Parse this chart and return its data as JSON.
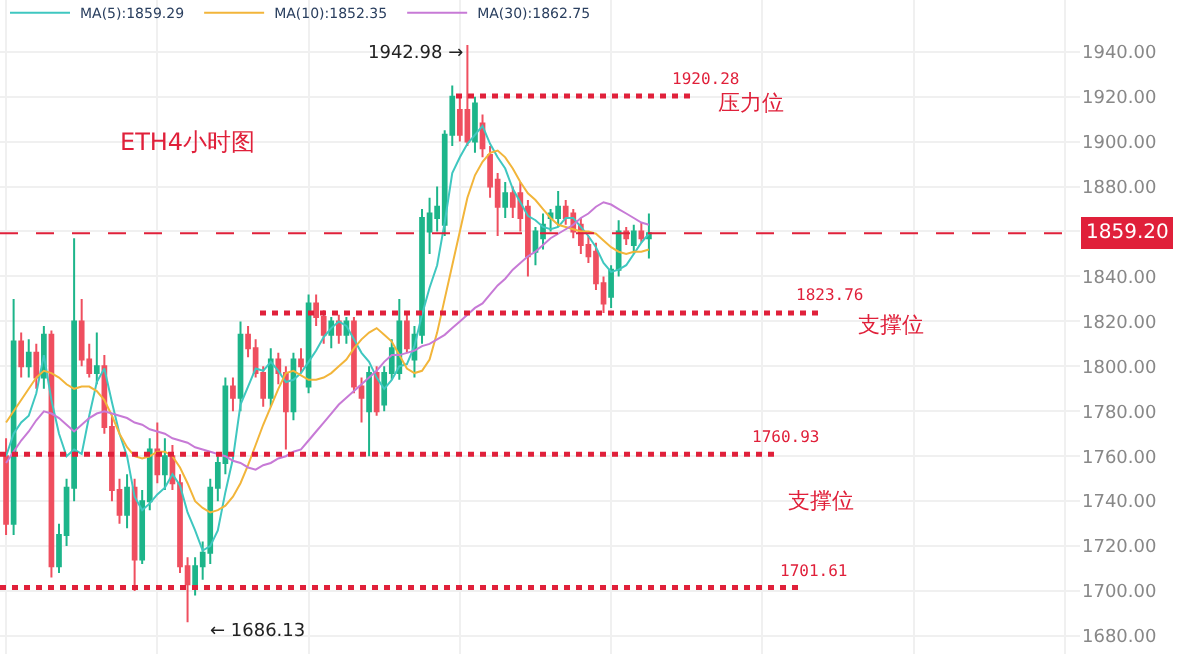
{
  "chart_data": {
    "type": "candlestick",
    "title": "ETH4小时图",
    "categories": [
      null,
      null,
      null,
      null,
      null,
      null,
      null,
      null,
      null,
      null,
      null,
      null,
      null,
      null,
      null,
      null,
      null,
      null,
      null,
      null,
      null,
      null,
      null,
      null,
      null,
      null,
      null,
      null,
      null,
      null,
      null,
      null,
      null,
      null,
      null,
      null,
      null,
      null,
      null,
      null,
      null,
      null,
      null,
      null,
      null,
      null,
      null,
      null,
      null,
      null,
      null,
      null,
      null,
      null,
      null,
      null,
      null,
      null,
      null,
      null,
      null,
      null,
      null,
      null,
      null,
      null,
      null,
      null,
      null,
      null,
      null,
      null,
      null,
      null,
      null,
      null,
      null,
      null,
      null,
      null,
      null,
      null,
      null,
      null,
      null,
      null,
      null,
      null,
      null,
      null,
      null,
      null,
      null,
      null,
      null,
      null,
      null,
      null,
      null,
      null,
      null,
      null,
      null,
      null,
      null,
      null,
      null,
      null,
      null,
      null,
      null,
      null,
      null,
      null,
      null,
      null,
      null,
      null,
      null,
      null,
      null,
      null,
      null,
      null,
      null,
      null,
      null,
      null,
      null,
      null,
      null,
      null,
      null,
      null,
      null,
      null,
      null,
      null,
      null,
      null,
      null,
      null,
      null
    ],
    "ohlc": [
      [
        1760,
        1768,
        1725,
        1730
      ],
      [
        1730,
        1830,
        1725,
        1811
      ],
      [
        1811,
        1815,
        1795,
        1800
      ],
      [
        1800,
        1812,
        1795,
        1806
      ],
      [
        1806,
        1810,
        1790,
        1795
      ],
      [
        1795,
        1818,
        1790,
        1814
      ],
      [
        1814,
        1816,
        1706,
        1711
      ],
      [
        1711,
        1730,
        1708,
        1725
      ],
      [
        1725,
        1750,
        1720,
        1746
      ],
      [
        1746,
        1857,
        1740,
        1820
      ],
      [
        1820,
        1830,
        1800,
        1803
      ],
      [
        1803,
        1810,
        1795,
        1797
      ],
      [
        1797,
        1815,
        1792,
        1800
      ],
      [
        1800,
        1805,
        1770,
        1773
      ],
      [
        1773,
        1778,
        1740,
        1745
      ],
      [
        1745,
        1750,
        1730,
        1734
      ],
      [
        1734,
        1752,
        1728,
        1746
      ],
      [
        1746,
        1750,
        1700,
        1714
      ],
      [
        1714,
        1745,
        1712,
        1740
      ],
      [
        1740,
        1768,
        1736,
        1763
      ],
      [
        1763,
        1775,
        1748,
        1752
      ],
      [
        1752,
        1768,
        1745,
        1760
      ],
      [
        1760,
        1765,
        1745,
        1748
      ],
      [
        1748,
        1752,
        1708,
        1711
      ],
      [
        1711,
        1715,
        1686.13,
        1703
      ],
      [
        1703,
        1715,
        1698,
        1711
      ],
      [
        1711,
        1722,
        1705,
        1717
      ],
      [
        1717,
        1750,
        1712,
        1746
      ],
      [
        1746,
        1760,
        1740,
        1757
      ],
      [
        1757,
        1795,
        1752,
        1791
      ],
      [
        1791,
        1795,
        1780,
        1786
      ],
      [
        1786,
        1820,
        1780,
        1814
      ],
      [
        1814,
        1818,
        1804,
        1808
      ],
      [
        1808,
        1812,
        1795,
        1797
      ],
      [
        1797,
        1800,
        1782,
        1786
      ],
      [
        1786,
        1808,
        1782,
        1803
      ],
      [
        1803,
        1806,
        1792,
        1797
      ],
      [
        1797,
        1800,
        1763,
        1780
      ],
      [
        1780,
        1806,
        1776,
        1803
      ],
      [
        1803,
        1808,
        1797,
        1800
      ],
      [
        1791,
        1832,
        1788,
        1828
      ],
      [
        1828,
        1832,
        1818,
        1822
      ],
      [
        1822,
        1825,
        1810,
        1814
      ],
      [
        1814,
        1822,
        1808,
        1820
      ],
      [
        1820,
        1823,
        1810,
        1814
      ],
      [
        1814,
        1822,
        1810,
        1820
      ],
      [
        1820,
        1822,
        1788,
        1791
      ],
      [
        1791,
        1795,
        1775,
        1786
      ],
      [
        1780,
        1800,
        1760,
        1797
      ],
      [
        1797,
        1800,
        1778,
        1780
      ],
      [
        1783,
        1800,
        1780,
        1797
      ],
      [
        1797,
        1812,
        1794,
        1808
      ],
      [
        1797,
        1830,
        1794,
        1820
      ],
      [
        1820,
        1824,
        1806,
        1808
      ],
      [
        1803,
        1818,
        1795,
        1814
      ],
      [
        1814,
        1870,
        1810,
        1866
      ],
      [
        1860,
        1875,
        1850,
        1868
      ],
      [
        1866,
        1880,
        1860,
        1871
      ],
      [
        1863,
        1905,
        1858,
        1903
      ],
      [
        1903,
        1925,
        1898,
        1920
      ],
      [
        1914,
        1920,
        1900,
        1903
      ],
      [
        1914,
        1942.98,
        1898,
        1900
      ],
      [
        1900,
        1920,
        1895,
        1917
      ],
      [
        1908,
        1912,
        1893,
        1897
      ],
      [
        1894,
        1898,
        1875,
        1880
      ],
      [
        1883,
        1886,
        1858,
        1871
      ],
      [
        1871,
        1882,
        1866,
        1877
      ],
      [
        1877,
        1880,
        1866,
        1871
      ],
      [
        1877,
        1882,
        1860,
        1866
      ],
      [
        1871,
        1874,
        1840,
        1849
      ],
      [
        1851,
        1862,
        1845,
        1860
      ],
      [
        1857,
        1868,
        1852,
        1863
      ],
      [
        1866,
        1870,
        1860,
        1868
      ],
      [
        1866,
        1878,
        1862,
        1871
      ],
      [
        1871,
        1874,
        1863,
        1866
      ],
      [
        1868,
        1870,
        1857,
        1860
      ],
      [
        1863,
        1866,
        1850,
        1854
      ],
      [
        1854,
        1858,
        1846,
        1849
      ],
      [
        1851,
        1855,
        1834,
        1837
      ],
      [
        1837,
        1840,
        1823.76,
        1828
      ],
      [
        1831,
        1845,
        1826,
        1843
      ],
      [
        1843,
        1865,
        1840,
        1860
      ],
      [
        1860,
        1862,
        1854,
        1857
      ],
      [
        1854,
        1863,
        1850,
        1860
      ],
      [
        1860,
        1864,
        1855,
        1857
      ],
      [
        1857,
        1868,
        1848,
        1859.2
      ],
      null,
      null,
      null,
      null,
      null,
      null,
      null,
      null,
      null,
      null,
      null,
      null,
      null,
      null,
      null,
      null,
      null,
      null,
      null,
      null,
      null,
      null,
      null,
      null,
      null,
      null,
      null,
      null,
      null,
      null,
      null,
      null,
      null,
      null,
      null,
      null,
      null,
      null,
      null,
      null,
      null,
      null,
      null,
      null,
      null,
      null,
      null,
      null,
      null,
      null,
      null,
      null,
      null,
      null,
      null,
      null,
      null
    ],
    "colors": [
      "#ef4f5f",
      "#1db58a",
      "#ef4f5f",
      "#1db58a",
      "#ef4f5f",
      "#1db58a",
      "#ef4f5f",
      "#1db58a",
      "#1db58a",
      "#1db58a",
      "#ef4f5f",
      "#ef4f5f",
      "#1db58a",
      "#ef4f5f",
      "#ef4f5f",
      "#ef4f5f",
      "#1db58a",
      "#ef4f5f",
      "#1db58a",
      "#1db58a",
      "#ef4f5f",
      "#1db58a",
      "#ef4f5f",
      "#ef4f5f",
      "#ef4f5f",
      "#1db58a",
      "#1db58a",
      "#1db58a",
      "#1db58a",
      "#1db58a",
      "#ef4f5f",
      "#1db58a",
      "#ef4f5f",
      "#ef4f5f",
      "#ef4f5f",
      "#1db58a",
      "#ef4f5f",
      "#ef4f5f",
      "#1db58a",
      "#ef4f5f",
      "#1db58a",
      "#ef4f5f",
      "#ef4f5f",
      "#1db58a",
      "#ef4f5f",
      "#1db58a",
      "#ef4f5f",
      "#ef4f5f",
      "#1db58a",
      "#ef4f5f",
      "#1db58a",
      "#1db58a",
      "#1db58a",
      "#ef4f5f",
      "#1db58a",
      "#1db58a",
      "#1db58a",
      "#1db58a",
      "#1db58a",
      "#1db58a",
      "#ef4f5f",
      "#ef4f5f",
      "#1db58a",
      "#ef4f5f",
      "#ef4f5f",
      "#ef4f5f",
      "#1db58a",
      "#ef4f5f",
      "#ef4f5f",
      "#ef4f5f",
      "#1db58a",
      "#1db58a",
      "#1db58a",
      "#1db58a",
      "#ef4f5f",
      "#ef4f5f",
      "#ef4f5f",
      "#ef4f5f",
      "#ef4f5f",
      "#ef4f5f",
      "#1db58a",
      "#1db58a",
      "#ef4f5f",
      "#1db58a",
      "#ef4f5f",
      "#1db58a",
      null,
      null,
      null,
      null,
      null,
      null,
      null,
      null,
      null,
      null,
      null,
      null,
      null,
      null,
      null,
      null,
      null,
      null,
      null,
      null,
      null,
      null,
      null,
      null,
      null,
      null,
      null,
      null,
      null,
      null,
      null,
      null,
      null,
      null,
      null,
      null,
      null,
      null,
      null,
      null,
      null,
      null,
      null,
      null,
      null,
      null,
      null,
      null,
      null,
      null,
      null,
      null,
      null,
      null,
      null,
      null,
      null
    ],
    "series": [
      {
        "name": "MA(5):1859.29",
        "type": "line",
        "color": "#3fc7c0",
        "values": [
          1760,
          1770,
          1775,
          1778,
          1788,
          1805,
          1785,
          1770,
          1760,
          1763,
          1761,
          1778,
          1793,
          1799,
          1784,
          1770,
          1760,
          1742,
          1736,
          1739,
          1743,
          1746,
          1752,
          1747,
          1735,
          1727,
          1718,
          1720,
          1727,
          1744,
          1759,
          1783,
          1791,
          1799,
          1798,
          1802,
          1798,
          1793,
          1794,
          1797,
          1802,
          1807,
          1813,
          1817,
          1820,
          1818,
          1812,
          1806,
          1802,
          1795,
          1790,
          1794,
          1800,
          1801,
          1809,
          1823,
          1835,
          1845,
          1864,
          1886,
          1893,
          1899,
          1903,
          1907,
          1899,
          1893,
          1888,
          1879,
          1873,
          1867,
          1865,
          1862,
          1861,
          1862,
          1866,
          1866,
          1862,
          1858,
          1853,
          1846,
          1842,
          1843,
          1845,
          1850,
          1855,
          1859,
          null,
          null,
          null,
          null,
          null,
          null,
          null,
          null,
          null,
          null,
          null,
          null,
          null,
          null,
          null,
          null,
          null,
          null,
          null,
          null,
          null,
          null,
          null,
          null,
          null,
          null,
          null,
          null,
          null,
          null,
          null,
          null,
          null,
          null,
          null,
          null,
          null,
          null,
          null,
          null,
          null,
          null,
          null,
          null,
          null,
          null,
          null,
          null,
          null,
          null,
          null,
          null,
          null,
          null,
          null,
          null,
          null
        ]
      },
      {
        "name": "MA(10):1852.35",
        "type": "line",
        "color": "#f2b53a",
        "values": [
          1775,
          1780,
          1785,
          1790,
          1795,
          1798,
          1797,
          1795,
          1792,
          1790,
          1791,
          1791,
          1789,
          1785,
          1778,
          1770,
          1764,
          1760,
          1759,
          1760,
          1762,
          1762,
          1760,
          1755,
          1748,
          1740,
          1737,
          1735,
          1736,
          1738,
          1742,
          1748,
          1756,
          1765,
          1774,
          1782,
          1790,
          1797,
          1798,
          1796,
          1794,
          1794,
          1795,
          1797,
          1800,
          1803,
          1808,
          1812,
          1815,
          1817,
          1814,
          1811,
          1805,
          1799,
          1797,
          1798,
          1803,
          1815,
          1830,
          1845,
          1860,
          1875,
          1885,
          1891,
          1895,
          1896,
          1893,
          1888,
          1882,
          1877,
          1874,
          1870,
          1866,
          1863,
          1862,
          1861,
          1860,
          1860,
          1859,
          1856,
          1853,
          1851,
          1850,
          1851,
          1851,
          1852,
          null,
          null,
          null,
          null,
          null,
          null,
          null,
          null,
          null,
          null,
          null,
          null,
          null,
          null,
          null,
          null,
          null,
          null,
          null,
          null,
          null,
          null,
          null,
          null,
          null,
          null,
          null,
          null,
          null,
          null,
          null,
          null,
          null,
          null,
          null,
          null,
          null,
          null,
          null,
          null,
          null,
          null,
          null,
          null,
          null,
          null,
          null,
          null,
          null,
          null,
          null,
          null,
          null,
          null,
          null,
          null,
          null
        ]
      },
      {
        "name": "MA(30):1862.75",
        "type": "line",
        "color": "#c77ad6",
        "values": [
          1757,
          1762,
          1767,
          1771,
          1776,
          1780,
          1779,
          1777,
          1774,
          1771,
          1774,
          1777,
          1779,
          1780,
          1779,
          1778,
          1777,
          1775,
          1774,
          1772,
          1771,
          1770,
          1768,
          1767,
          1766,
          1764,
          1763,
          1762,
          1761,
          1760,
          1758,
          1757,
          1755,
          1754,
          1756,
          1757,
          1759,
          1760,
          1762,
          1763,
          1767,
          1771,
          1775,
          1779,
          1783,
          1786,
          1789,
          1792,
          1795,
          1798,
          1802,
          1805,
          1805,
          1806,
          1807,
          1809,
          1810,
          1812,
          1814,
          1817,
          1820,
          1823,
          1826,
          1828,
          1832,
          1836,
          1839,
          1843,
          1846,
          1849,
          1851,
          1854,
          1857,
          1859,
          1861,
          1863,
          1866,
          1868,
          1871,
          1873,
          1872,
          1870,
          1868,
          1866,
          1864,
          1863,
          null,
          null,
          null,
          null,
          null,
          null,
          null,
          null,
          null,
          null,
          null,
          null,
          null,
          null,
          null,
          null,
          null,
          null,
          null,
          null,
          null,
          null,
          null,
          null,
          null,
          null,
          null,
          null,
          null,
          null,
          null,
          null,
          null,
          null,
          null,
          null,
          null,
          null,
          null,
          null,
          null,
          null,
          null,
          null,
          null,
          null,
          null,
          null,
          null,
          null,
          null,
          null,
          null,
          null,
          null,
          null,
          null
        ]
      }
    ],
    "ylim": [
      1672,
      1963
    ],
    "yticks": [
      {
        "value": 1680,
        "label": "1680.00"
      },
      {
        "value": 1700,
        "label": "1700.00"
      },
      {
        "value": 1720,
        "label": "1720.00"
      },
      {
        "value": 1740,
        "label": "1740.00"
      },
      {
        "value": 1760,
        "label": "1760.00"
      },
      {
        "value": 1780,
        "label": "1780.00"
      },
      {
        "value": 1800,
        "label": "1800.00"
      },
      {
        "value": 1820,
        "label": "1820.00"
      },
      {
        "value": 1840,
        "label": "1840.00"
      },
      {
        "value": 1860,
        "label": null
      },
      {
        "value": 1880,
        "label": "1880.00"
      },
      {
        "value": 1900,
        "label": "1900.00"
      },
      {
        "value": 1920,
        "label": "1920.00"
      },
      {
        "value": 1940,
        "label": "1940.00"
      }
    ],
    "tick_labels": "y",
    "grid": true,
    "legend": "top left",
    "ref_lines": [
      {
        "axis": "y",
        "value": 1920.28,
        "label": "1920.28",
        "color": "#e0203a",
        "line_style": "dotted"
      },
      {
        "axis": "y",
        "value": 1859.2,
        "label": "1859.20",
        "color": "#e0203a",
        "line_style": "dashed"
      },
      {
        "axis": "y",
        "value": 1823.76,
        "label": "1823.76",
        "color": "#e0203a",
        "line_style": "dotted"
      },
      {
        "axis": "y",
        "value": 1760.93,
        "label": "1760.93",
        "color": "#e0203a",
        "line_style": "dotted"
      },
      {
        "axis": "y",
        "value": 1701.61,
        "label": "1701.61",
        "color": "#e0203a",
        "line_style": "dotted"
      }
    ],
    "annotations": [
      "压力位",
      "支撑位",
      "支撑位",
      "1942.98 →",
      "← 1686.13"
    ]
  }
}
